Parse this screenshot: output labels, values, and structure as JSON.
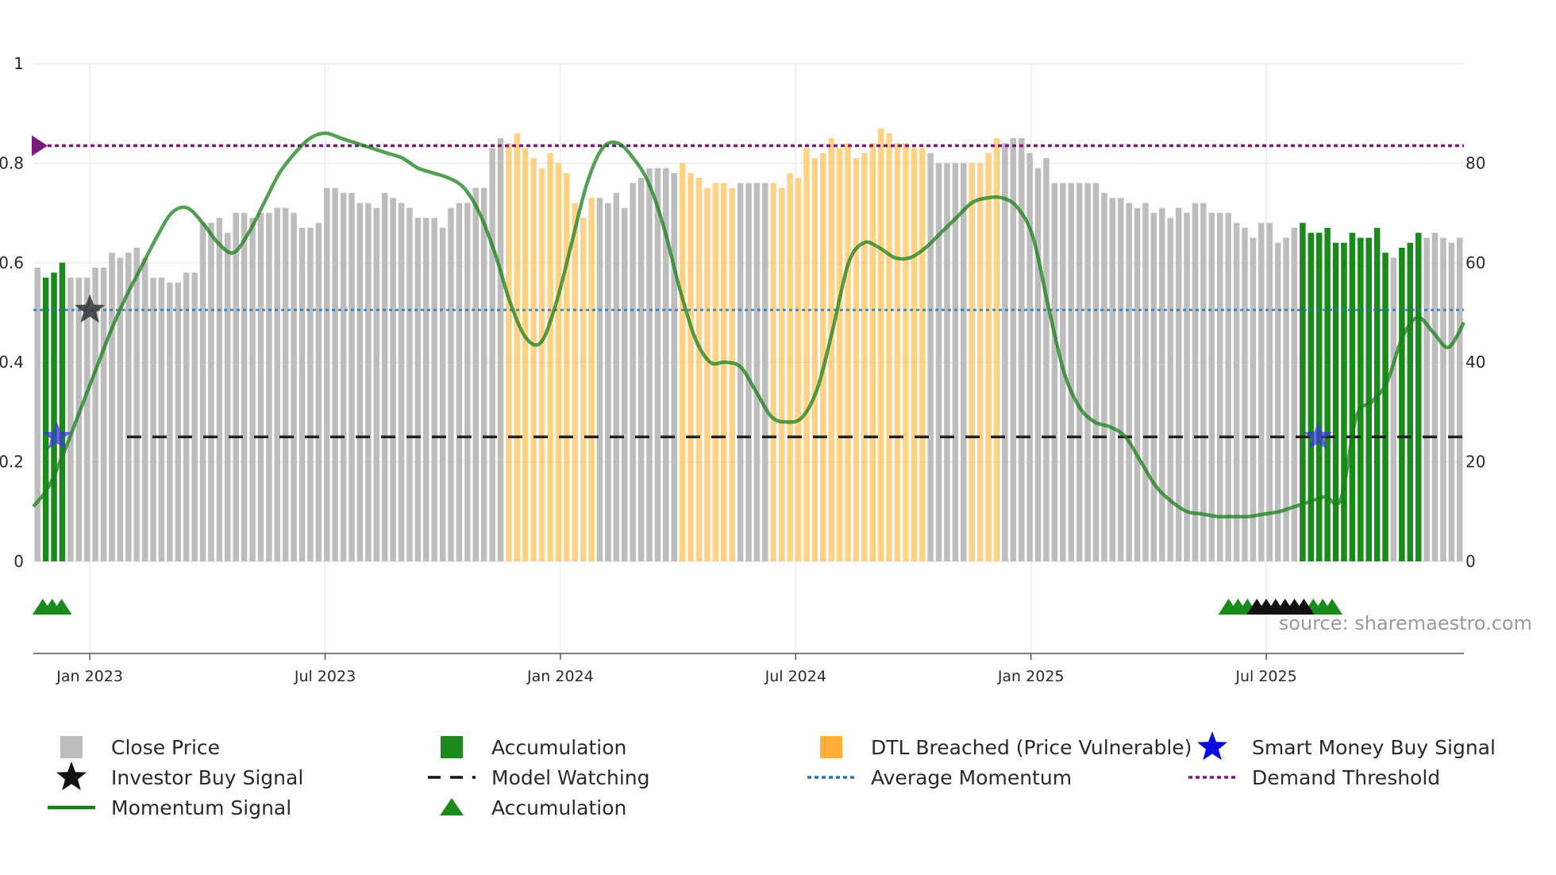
{
  "chart_data": {
    "type": "bar",
    "title": "",
    "source": "source: sharemaestro.com",
    "y_left": {
      "min": 0,
      "max": 1,
      "ticks": [
        0,
        0.2,
        0.4,
        0.6,
        0.8,
        1
      ],
      "tick_labels": [
        "0",
        "0.2",
        "0.4",
        "0.6",
        "0.8",
        "1"
      ]
    },
    "y_right": {
      "min": 0,
      "max": 100,
      "ticks": [
        0,
        20,
        40,
        60,
        80
      ],
      "tick_labels": [
        "0",
        "20",
        "40",
        "60",
        "80"
      ]
    },
    "x_axis": {
      "start_month": 2022.88,
      "end_month": 2025.92,
      "ticks": [
        {
          "t": 2023.0,
          "label": "Jan 2023"
        },
        {
          "t": 2023.5,
          "label": "Jul 2023"
        },
        {
          "t": 2024.0,
          "label": "Jan 2024"
        },
        {
          "t": 2024.5,
          "label": "Jul 2024"
        },
        {
          "t": 2025.0,
          "label": "Jan 2025"
        },
        {
          "t": 2025.5,
          "label": "Jul 2025"
        }
      ]
    },
    "series": [
      {
        "name": "Close Price",
        "axis": "right",
        "values": [
          59,
          57,
          58,
          60,
          57,
          57,
          57,
          59,
          59,
          62,
          61,
          62,
          63,
          61,
          57,
          57,
          56,
          56,
          58,
          58,
          68,
          68,
          69,
          66,
          70,
          70,
          69,
          70,
          70,
          71,
          71,
          70,
          67,
          67,
          68,
          75,
          75,
          74,
          74,
          72,
          72,
          71,
          74,
          73,
          72,
          71,
          69,
          69,
          69,
          67,
          71,
          72,
          72,
          75,
          75,
          83,
          85,
          84,
          86,
          83,
          81,
          79,
          82,
          80,
          78,
          72,
          69,
          73,
          73,
          72,
          74,
          71,
          76,
          77,
          79,
          79,
          79,
          78,
          80,
          78,
          77,
          75,
          76,
          76,
          75,
          76,
          76,
          76,
          76,
          76,
          75,
          78,
          77,
          83,
          81,
          82,
          85,
          83,
          84,
          81,
          82,
          84,
          87,
          86,
          84,
          84,
          83,
          83,
          82,
          80,
          80,
          80,
          80,
          80,
          80,
          82,
          85,
          84,
          85,
          85,
          82,
          79,
          81,
          76,
          76,
          76,
          76,
          76,
          76,
          74,
          73,
          73,
          72,
          71,
          72,
          70,
          71,
          69,
          71,
          70,
          72,
          72,
          70,
          70,
          70,
          68,
          67,
          65,
          68,
          68,
          64,
          65,
          67,
          68,
          66,
          66,
          67,
          64,
          64,
          66,
          65,
          65,
          67,
          62,
          61,
          63,
          64,
          66,
          65,
          66,
          65,
          64,
          65
        ],
        "color": "#bdbdbd"
      },
      {
        "name": "Momentum Signal",
        "axis": "left",
        "values": [
          0.11,
          0.15,
          0.22,
          0.3,
          0.38,
          0.46,
          0.53,
          0.59,
          0.65,
          0.7,
          0.71,
          0.68,
          0.64,
          0.62,
          0.66,
          0.72,
          0.78,
          0.82,
          0.85,
          0.86,
          0.85,
          0.84,
          0.83,
          0.82,
          0.81,
          0.79,
          0.78,
          0.77,
          0.75,
          0.7,
          0.62,
          0.52,
          0.45,
          0.44,
          0.52,
          0.64,
          0.76,
          0.83,
          0.84,
          0.81,
          0.76,
          0.67,
          0.55,
          0.45,
          0.4,
          0.4,
          0.39,
          0.34,
          0.29,
          0.28,
          0.29,
          0.35,
          0.47,
          0.6,
          0.64,
          0.63,
          0.61,
          0.61,
          0.63,
          0.66,
          0.69,
          0.72,
          0.73,
          0.73,
          0.71,
          0.65,
          0.51,
          0.38,
          0.31,
          0.28,
          0.27,
          0.25,
          0.2,
          0.15,
          0.12,
          0.1,
          0.095,
          0.09,
          0.09,
          0.09,
          0.095,
          0.1,
          0.11,
          0.12,
          0.13,
          0.125,
          0.29,
          0.32,
          0.36,
          0.45,
          0.49,
          0.46,
          0.43,
          0.48
        ],
        "color": "#1a7f1a"
      },
      {
        "name": "Average Momentum",
        "axis": "left",
        "values": [
          0.505
        ],
        "color": "#1f77b4"
      },
      {
        "name": "Demand Threshold",
        "axis": "left",
        "values": [
          0.835
        ],
        "color": "#7b1a7b"
      },
      {
        "name": "Model Watching",
        "axis": "left",
        "values": [
          0.25
        ],
        "color": "#222222"
      }
    ],
    "accumulation_ranges": [
      [
        1,
        3
      ],
      [
        153,
        163
      ],
      [
        165,
        167
      ]
    ],
    "dtl_breached_ranges": [
      [
        57,
        67
      ],
      [
        78,
        84
      ],
      [
        89,
        107
      ],
      [
        113,
        116
      ]
    ],
    "markers": {
      "smart_money_buy": [
        {
          "t": 2022.93,
          "y": 0.25
        },
        {
          "t": 2025.61,
          "y": 0.25
        }
      ],
      "investor_buy": [
        {
          "t": 2023.0,
          "y": 0.505
        }
      ],
      "accumulation_triangles_green": [
        2022.9,
        2022.92,
        2022.94,
        2025.42,
        2025.44,
        2025.46,
        2025.6,
        2025.62,
        2025.64
      ],
      "accumulation_triangles_black": [
        2025.48,
        2025.5,
        2025.52,
        2025.54,
        2025.56,
        2025.58
      ]
    },
    "legend": [
      {
        "label": "Close Price",
        "kind": "square",
        "color": "#bdbdbd"
      },
      {
        "label": "Accumulation",
        "kind": "square",
        "color": "#1a8a1a"
      },
      {
        "label": "DTL Breached (Price Vulnerable)",
        "kind": "square",
        "color": "#ffa726"
      },
      {
        "label": "Smart Money Buy Signal",
        "kind": "star",
        "color": "#0a0ae0"
      },
      {
        "label": "Investor Buy Signal",
        "kind": "star",
        "color": "#111111"
      },
      {
        "label": "Model Watching",
        "kind": "dash",
        "color": "#111111"
      },
      {
        "label": "Average Momentum",
        "kind": "dot",
        "color": "#1f77b4"
      },
      {
        "label": "Demand Threshold",
        "kind": "dot",
        "color": "#7b1a7b"
      },
      {
        "label": "Momentum Signal",
        "kind": "line",
        "color": "#1a7f1a"
      },
      {
        "label": "Accumulation",
        "kind": "triangle",
        "color": "#1a8a1a"
      }
    ]
  }
}
